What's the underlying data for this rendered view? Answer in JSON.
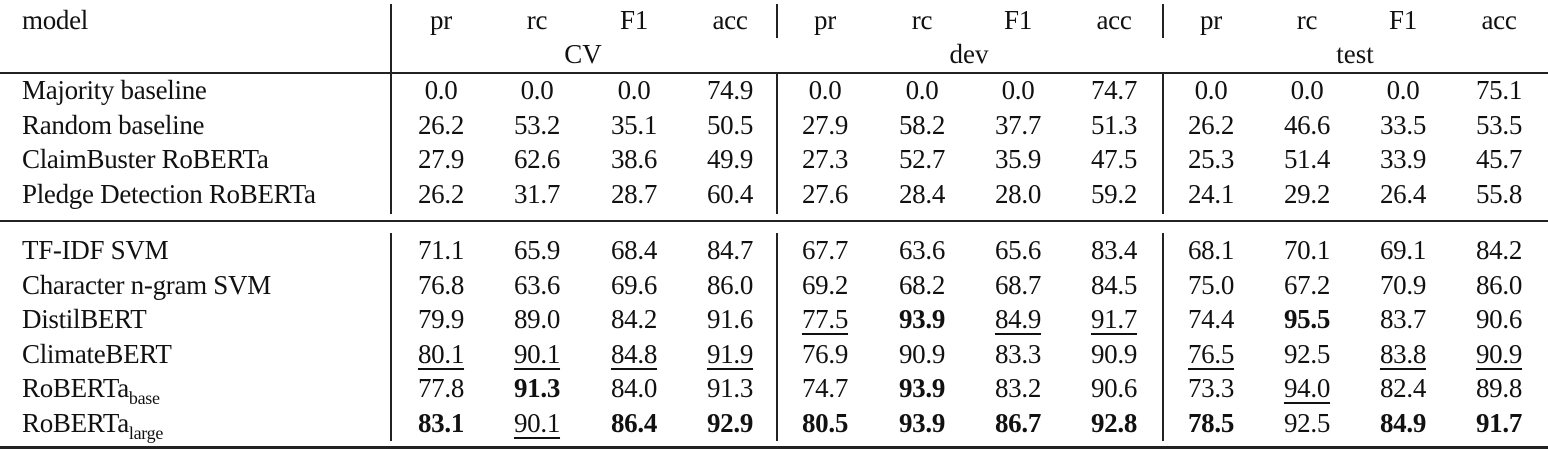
{
  "header": {
    "model_label": "model",
    "metrics": [
      "pr",
      "rc",
      "F1",
      "acc"
    ],
    "groups": [
      "CV",
      "dev",
      "test"
    ]
  },
  "sections": [
    {
      "rows": [
        {
          "model": "Majority baseline",
          "sub": "",
          "cells": [
            {
              "v": "0.0"
            },
            {
              "v": "0.0"
            },
            {
              "v": "0.0"
            },
            {
              "v": "74.9"
            },
            {
              "v": "0.0"
            },
            {
              "v": "0.0"
            },
            {
              "v": "0.0"
            },
            {
              "v": "74.7"
            },
            {
              "v": "0.0"
            },
            {
              "v": "0.0"
            },
            {
              "v": "0.0"
            },
            {
              "v": "75.1"
            }
          ]
        },
        {
          "model": "Random baseline",
          "sub": "",
          "cells": [
            {
              "v": "26.2"
            },
            {
              "v": "53.2"
            },
            {
              "v": "35.1"
            },
            {
              "v": "50.5"
            },
            {
              "v": "27.9"
            },
            {
              "v": "58.2"
            },
            {
              "v": "37.7"
            },
            {
              "v": "51.3"
            },
            {
              "v": "26.2"
            },
            {
              "v": "46.6"
            },
            {
              "v": "33.5"
            },
            {
              "v": "53.5"
            }
          ]
        },
        {
          "model": "ClaimBuster RoBERTa",
          "sub": "",
          "cells": [
            {
              "v": "27.9"
            },
            {
              "v": "62.6"
            },
            {
              "v": "38.6"
            },
            {
              "v": "49.9"
            },
            {
              "v": "27.3"
            },
            {
              "v": "52.7"
            },
            {
              "v": "35.9"
            },
            {
              "v": "47.5"
            },
            {
              "v": "25.3"
            },
            {
              "v": "51.4"
            },
            {
              "v": "33.9"
            },
            {
              "v": "45.7"
            }
          ]
        },
        {
          "model": "Pledge Detection RoBERTa",
          "sub": "",
          "cells": [
            {
              "v": "26.2"
            },
            {
              "v": "31.7"
            },
            {
              "v": "28.7"
            },
            {
              "v": "60.4"
            },
            {
              "v": "27.6"
            },
            {
              "v": "28.4"
            },
            {
              "v": "28.0"
            },
            {
              "v": "59.2"
            },
            {
              "v": "24.1"
            },
            {
              "v": "29.2"
            },
            {
              "v": "26.4"
            },
            {
              "v": "55.8"
            }
          ]
        }
      ]
    },
    {
      "rows": [
        {
          "model": "TF-IDF SVM",
          "sub": "",
          "cells": [
            {
              "v": "71.1"
            },
            {
              "v": "65.9"
            },
            {
              "v": "68.4"
            },
            {
              "v": "84.7"
            },
            {
              "v": "67.7"
            },
            {
              "v": "63.6"
            },
            {
              "v": "65.6"
            },
            {
              "v": "83.4"
            },
            {
              "v": "68.1"
            },
            {
              "v": "70.1"
            },
            {
              "v": "69.1"
            },
            {
              "v": "84.2"
            }
          ]
        },
        {
          "model": "Character n-gram SVM",
          "sub": "",
          "cells": [
            {
              "v": "76.8"
            },
            {
              "v": "63.6"
            },
            {
              "v": "69.6"
            },
            {
              "v": "86.0"
            },
            {
              "v": "69.2"
            },
            {
              "v": "68.2"
            },
            {
              "v": "68.7"
            },
            {
              "v": "84.5"
            },
            {
              "v": "75.0"
            },
            {
              "v": "67.2"
            },
            {
              "v": "70.9"
            },
            {
              "v": "86.0"
            }
          ]
        },
        {
          "model": "DistilBERT",
          "sub": "",
          "cells": [
            {
              "v": "79.9"
            },
            {
              "v": "89.0"
            },
            {
              "v": "84.2"
            },
            {
              "v": "91.6"
            },
            {
              "v": "77.5",
              "u": true
            },
            {
              "v": "93.9",
              "b": true
            },
            {
              "v": "84.9",
              "u": true
            },
            {
              "v": "91.7",
              "u": true
            },
            {
              "v": "74.4"
            },
            {
              "v": "95.5",
              "b": true
            },
            {
              "v": "83.7"
            },
            {
              "v": "90.6"
            }
          ]
        },
        {
          "model": "ClimateBERT",
          "sub": "",
          "cells": [
            {
              "v": "80.1",
              "u": true
            },
            {
              "v": "90.1",
              "u": true
            },
            {
              "v": "84.8",
              "u": true
            },
            {
              "v": "91.9",
              "u": true
            },
            {
              "v": "76.9"
            },
            {
              "v": "90.9"
            },
            {
              "v": "83.3"
            },
            {
              "v": "90.9"
            },
            {
              "v": "76.5",
              "u": true
            },
            {
              "v": "92.5"
            },
            {
              "v": "83.8",
              "u": true
            },
            {
              "v": "90.9",
              "u": true
            }
          ]
        },
        {
          "model": "RoBERTa",
          "sub": "base",
          "cells": [
            {
              "v": "77.8"
            },
            {
              "v": "91.3",
              "b": true
            },
            {
              "v": "84.0"
            },
            {
              "v": "91.3"
            },
            {
              "v": "74.7"
            },
            {
              "v": "93.9",
              "b": true
            },
            {
              "v": "83.2"
            },
            {
              "v": "90.6"
            },
            {
              "v": "73.3"
            },
            {
              "v": "94.0",
              "u": true
            },
            {
              "v": "82.4"
            },
            {
              "v": "89.8"
            }
          ]
        },
        {
          "model": "RoBERTa",
          "sub": "large",
          "cells": [
            {
              "v": "83.1",
              "b": true
            },
            {
              "v": "90.1",
              "u": true
            },
            {
              "v": "86.4",
              "b": true
            },
            {
              "v": "92.9",
              "b": true
            },
            {
              "v": "80.5",
              "b": true
            },
            {
              "v": "93.9",
              "b": true
            },
            {
              "v": "86.7",
              "b": true
            },
            {
              "v": "92.8",
              "b": true
            },
            {
              "v": "78.5",
              "b": true
            },
            {
              "v": "92.5"
            },
            {
              "v": "84.9",
              "b": true
            },
            {
              "v": "91.7",
              "b": true
            }
          ]
        }
      ]
    }
  ],
  "chart_data": {
    "type": "table",
    "title": "",
    "columns": [
      "model",
      "CV pr",
      "CV rc",
      "CV F1",
      "CV acc",
      "dev pr",
      "dev rc",
      "dev F1",
      "dev acc",
      "test pr",
      "test rc",
      "test F1",
      "test acc"
    ],
    "rows": [
      [
        "Majority baseline",
        0.0,
        0.0,
        0.0,
        74.9,
        0.0,
        0.0,
        0.0,
        74.7,
        0.0,
        0.0,
        0.0,
        75.1
      ],
      [
        "Random baseline",
        26.2,
        53.2,
        35.1,
        50.5,
        27.9,
        58.2,
        37.7,
        51.3,
        26.2,
        46.6,
        33.5,
        53.5
      ],
      [
        "ClaimBuster RoBERTa",
        27.9,
        62.6,
        38.6,
        49.9,
        27.3,
        52.7,
        35.9,
        47.5,
        25.3,
        51.4,
        33.9,
        45.7
      ],
      [
        "Pledge Detection RoBERTa",
        26.2,
        31.7,
        28.7,
        60.4,
        27.6,
        28.4,
        28.0,
        59.2,
        24.1,
        29.2,
        26.4,
        55.8
      ],
      [
        "TF-IDF SVM",
        71.1,
        65.9,
        68.4,
        84.7,
        67.7,
        63.6,
        65.6,
        83.4,
        68.1,
        70.1,
        69.1,
        84.2
      ],
      [
        "Character n-gram SVM",
        76.8,
        63.6,
        69.6,
        86.0,
        69.2,
        68.2,
        68.7,
        84.5,
        75.0,
        67.2,
        70.9,
        86.0
      ],
      [
        "DistilBERT",
        79.9,
        89.0,
        84.2,
        91.6,
        77.5,
        93.9,
        84.9,
        91.7,
        74.4,
        95.5,
        83.7,
        90.6
      ],
      [
        "ClimateBERT",
        80.1,
        90.1,
        84.8,
        91.9,
        76.9,
        90.9,
        83.3,
        90.9,
        76.5,
        92.5,
        83.8,
        90.9
      ],
      [
        "RoBERTa_base",
        77.8,
        91.3,
        84.0,
        91.3,
        74.7,
        93.9,
        83.2,
        90.6,
        73.3,
        94.0,
        82.4,
        89.8
      ],
      [
        "RoBERTa_large",
        83.1,
        90.1,
        86.4,
        92.9,
        80.5,
        93.9,
        86.7,
        92.8,
        78.5,
        92.5,
        84.9,
        91.7
      ]
    ],
    "notes": "bold = best per column, underline = second best"
  }
}
